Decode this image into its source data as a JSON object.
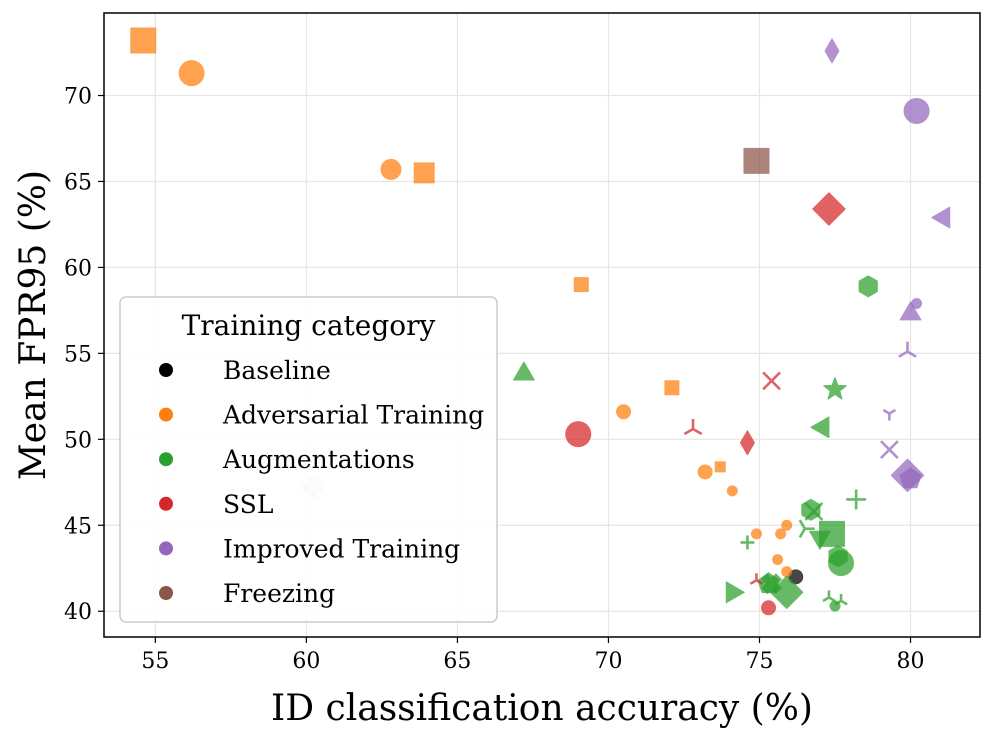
{
  "chart_data": {
    "type": "scatter",
    "title": "",
    "xlabel": "ID classification accuracy (%)",
    "ylabel": "Mean FPR95 (%)",
    "xlim": [
      53.3,
      82.3
    ],
    "ylim": [
      38.5,
      74.8
    ],
    "xticks": [
      55,
      60,
      65,
      70,
      75,
      80
    ],
    "yticks": [
      40,
      45,
      50,
      55,
      60,
      65,
      70
    ],
    "grid": true,
    "legend": {
      "title": "Training category",
      "position": "bottom-left",
      "entries": [
        {
          "name": "Baseline",
          "color": "#000000"
        },
        {
          "name": "Adversarial Training",
          "color": "#ff7f0e"
        },
        {
          "name": "Augmentations",
          "color": "#2ca02c"
        },
        {
          "name": "SSL",
          "color": "#d62728"
        },
        {
          "name": "Improved Training",
          "color": "#9467bd"
        },
        {
          "name": "Freezing",
          "color": "#8c564b"
        }
      ]
    },
    "series": [
      {
        "name": "Baseline",
        "color": "#000000",
        "points": [
          {
            "x": 76.2,
            "y": 42.0,
            "marker": "circle",
            "size": "small"
          }
        ]
      },
      {
        "name": "Adversarial Training",
        "color": "#ff7f0e",
        "points": [
          {
            "x": 54.6,
            "y": 73.2,
            "marker": "square",
            "size": "large"
          },
          {
            "x": 56.2,
            "y": 71.3,
            "marker": "circle",
            "size": "large"
          },
          {
            "x": 62.8,
            "y": 65.7,
            "marker": "circle",
            "size": "medium"
          },
          {
            "x": 63.9,
            "y": 65.5,
            "marker": "square",
            "size": "medium"
          },
          {
            "x": 69.1,
            "y": 59.0,
            "marker": "square",
            "size": "small"
          },
          {
            "x": 70.5,
            "y": 51.6,
            "marker": "circle",
            "size": "small"
          },
          {
            "x": 72.1,
            "y": 53.0,
            "marker": "square",
            "size": "small"
          },
          {
            "x": 73.2,
            "y": 48.1,
            "marker": "circle",
            "size": "small"
          },
          {
            "x": 73.7,
            "y": 48.4,
            "marker": "square",
            "size": "xsmall"
          },
          {
            "x": 74.1,
            "y": 47.0,
            "marker": "circle",
            "size": "xsmall"
          },
          {
            "x": 74.9,
            "y": 44.5,
            "marker": "circle",
            "size": "xsmall"
          },
          {
            "x": 75.6,
            "y": 43.0,
            "marker": "circle",
            "size": "xsmall"
          },
          {
            "x": 75.7,
            "y": 44.5,
            "marker": "circle",
            "size": "xsmall"
          },
          {
            "x": 75.9,
            "y": 45.0,
            "marker": "circle",
            "size": "xsmall"
          },
          {
            "x": 75.9,
            "y": 42.3,
            "marker": "circle",
            "size": "xsmall"
          }
        ]
      },
      {
        "name": "Augmentations",
        "color": "#2ca02c",
        "points": [
          {
            "x": 60.2,
            "y": 47.2,
            "marker": "plus-filled",
            "size": "medium",
            "faint": true
          },
          {
            "x": 67.2,
            "y": 53.8,
            "marker": "triangle-up",
            "size": "medium"
          },
          {
            "x": 74.1,
            "y": 41.1,
            "marker": "triangle-right",
            "size": "medium"
          },
          {
            "x": 74.6,
            "y": 44.0,
            "marker": "tick-plus",
            "size": "small"
          },
          {
            "x": 75.3,
            "y": 41.6,
            "marker": "pentagon",
            "size": "medium"
          },
          {
            "x": 75.4,
            "y": 41.6,
            "marker": "x-filled",
            "size": "medium"
          },
          {
            "x": 75.9,
            "y": 41.1,
            "marker": "diamond",
            "size": "large"
          },
          {
            "x": 76.5,
            "y": 44.8,
            "marker": "tri-right",
            "size": "medium"
          },
          {
            "x": 76.7,
            "y": 45.9,
            "marker": "hexagon",
            "size": "medium"
          },
          {
            "x": 76.8,
            "y": 45.8,
            "marker": "x-thin",
            "size": "medium"
          },
          {
            "x": 77.0,
            "y": 44.3,
            "marker": "triangle-down",
            "size": "medium"
          },
          {
            "x": 77.4,
            "y": 44.5,
            "marker": "square",
            "size": "large"
          },
          {
            "x": 77.3,
            "y": 40.8,
            "marker": "tri-down-small",
            "size": "small"
          },
          {
            "x": 77.5,
            "y": 40.3,
            "marker": "circle",
            "size": "xsmall"
          },
          {
            "x": 77.5,
            "y": 52.9,
            "marker": "star",
            "size": "medium"
          },
          {
            "x": 77.1,
            "y": 50.7,
            "marker": "triangle-left",
            "size": "medium"
          },
          {
            "x": 77.6,
            "y": 43.2,
            "marker": "hexagon",
            "size": "medium"
          },
          {
            "x": 77.7,
            "y": 42.8,
            "marker": "circle",
            "size": "large"
          },
          {
            "x": 77.7,
            "y": 40.6,
            "marker": "tri-down",
            "size": "small"
          },
          {
            "x": 78.2,
            "y": 46.5,
            "marker": "plus-thin",
            "size": "medium"
          },
          {
            "x": 78.6,
            "y": 58.9,
            "marker": "hexagon",
            "size": "medium"
          }
        ]
      },
      {
        "name": "SSL",
        "color": "#d62728",
        "points": [
          {
            "x": 69.0,
            "y": 50.3,
            "marker": "circle",
            "size": "large"
          },
          {
            "x": 72.8,
            "y": 50.6,
            "marker": "tri-down",
            "size": "medium"
          },
          {
            "x": 74.6,
            "y": 49.8,
            "marker": "thin-diamond",
            "size": "medium"
          },
          {
            "x": 74.9,
            "y": 41.8,
            "marker": "tri-down",
            "size": "small"
          },
          {
            "x": 75.3,
            "y": 40.2,
            "marker": "circle",
            "size": "small"
          },
          {
            "x": 75.4,
            "y": 53.4,
            "marker": "x-thin",
            "size": "medium"
          },
          {
            "x": 77.3,
            "y": 63.4,
            "marker": "diamond",
            "size": "large"
          }
        ]
      },
      {
        "name": "Improved Training",
        "color": "#9467bd",
        "points": [
          {
            "x": 77.4,
            "y": 72.6,
            "marker": "thin-diamond",
            "size": "medium"
          },
          {
            "x": 80.2,
            "y": 69.1,
            "marker": "circle",
            "size": "large"
          },
          {
            "x": 81.1,
            "y": 62.9,
            "marker": "triangle-left",
            "size": "medium"
          },
          {
            "x": 80.2,
            "y": 57.9,
            "marker": "circle",
            "size": "xsmall"
          },
          {
            "x": 80.0,
            "y": 57.3,
            "marker": "triangle-up",
            "size": "medium"
          },
          {
            "x": 79.9,
            "y": 55.1,
            "marker": "tri-down",
            "size": "medium"
          },
          {
            "x": 79.3,
            "y": 51.5,
            "marker": "tri-up",
            "size": "small"
          },
          {
            "x": 79.3,
            "y": 49.4,
            "marker": "x-thin",
            "size": "medium"
          },
          {
            "x": 79.9,
            "y": 47.9,
            "marker": "diamond",
            "size": "large"
          },
          {
            "x": 80.0,
            "y": 47.7,
            "marker": "pentagon",
            "size": "medium"
          }
        ]
      },
      {
        "name": "Freezing",
        "color": "#8c564b",
        "points": [
          {
            "x": 74.9,
            "y": 66.2,
            "marker": "square",
            "size": "large"
          }
        ]
      }
    ]
  }
}
